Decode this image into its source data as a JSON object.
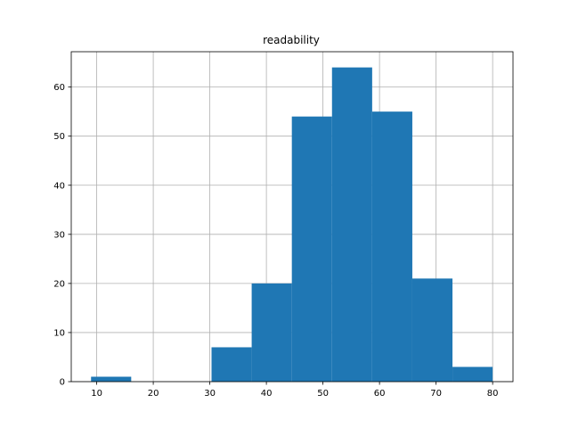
{
  "chart_data": {
    "type": "bar",
    "title": "readability",
    "xlabel": "",
    "ylabel": "",
    "grid": true,
    "bar_color": "#1f77b4",
    "grid_color": "#b0b0b0",
    "xlim": [
      5.5,
      83.6
    ],
    "ylim": [
      0,
      67.2
    ],
    "xticks": [
      10,
      20,
      30,
      40,
      50,
      60,
      70,
      80
    ],
    "yticks": [
      0,
      10,
      20,
      30,
      40,
      50,
      60
    ],
    "bins": [
      {
        "x0": 9.0,
        "x1": 16.1,
        "count": 1
      },
      {
        "x0": 16.1,
        "x1": 23.2,
        "count": 0
      },
      {
        "x0": 23.2,
        "x1": 30.3,
        "count": 0
      },
      {
        "x0": 30.3,
        "x1": 37.4,
        "count": 7
      },
      {
        "x0": 37.4,
        "x1": 44.5,
        "count": 20
      },
      {
        "x0": 44.5,
        "x1": 51.6,
        "count": 54
      },
      {
        "x0": 51.6,
        "x1": 58.7,
        "count": 64
      },
      {
        "x0": 58.7,
        "x1": 65.8,
        "count": 55
      },
      {
        "x0": 65.8,
        "x1": 72.9,
        "count": 21
      },
      {
        "x0": 72.9,
        "x1": 80.0,
        "count": 3
      }
    ]
  }
}
